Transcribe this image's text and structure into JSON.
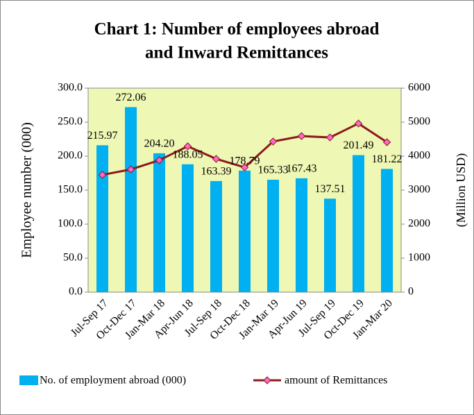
{
  "chart_data": {
    "type": "bar_line",
    "title": [
      "Chart 1: Number of employees abroad",
      "and Inward Remittances"
    ],
    "y_label": "Employee number  (000)",
    "y2_label": "(Million USD)",
    "categories": [
      "Jul-Sep 17",
      "Oct-Dec 17",
      "Jan-Mar 18",
      "Apr-Jun 18",
      "Jul-Sep 18",
      "Oct-Dec 18",
      "Jan-Mar 19",
      "Apr-Jun 19",
      "Jul-Sep 19",
      "Oct-Dec 19",
      "Jan-Mar 20"
    ],
    "series": [
      {
        "name": "No. of employment abroad (000)",
        "color": "#00b0f0",
        "values": [
          215.97,
          272.06,
          204.2,
          188.05,
          163.39,
          178.79,
          165.33,
          167.43,
          137.51,
          201.49,
          181.22
        ],
        "value_labels": [
          "215.97",
          "272.06",
          "204.20",
          "188.05",
          "163.39",
          "178.79",
          "165.33",
          "167.43",
          "137.51",
          "201.49",
          "181.22"
        ]
      },
      {
        "name": "amount of Remittances",
        "color": "#8b1a1a",
        "marker_color": "#ff66cc",
        "axis": "y2",
        "values": [
          3450,
          3610,
          3880,
          4290,
          3920,
          3670,
          4430,
          4590,
          4550,
          4960,
          4410
        ]
      }
    ],
    "ylim": [
      0,
      300
    ],
    "yticks": [
      {
        "value": 0,
        "label": "0.0"
      },
      {
        "value": 50,
        "label": "50.0"
      },
      {
        "value": 100,
        "label": "100.0"
      },
      {
        "value": 150,
        "label": "150.0"
      },
      {
        "value": 200,
        "label": "200.0"
      },
      {
        "value": 250,
        "label": "250.0"
      },
      {
        "value": 300,
        "label": "300.0"
      }
    ],
    "y2lim": [
      0,
      6000
    ],
    "y2ticks": [
      0,
      1000,
      2000,
      3000,
      4000,
      5000,
      6000
    ],
    "plot_background": "#eef7b4",
    "legend": "bottom"
  }
}
